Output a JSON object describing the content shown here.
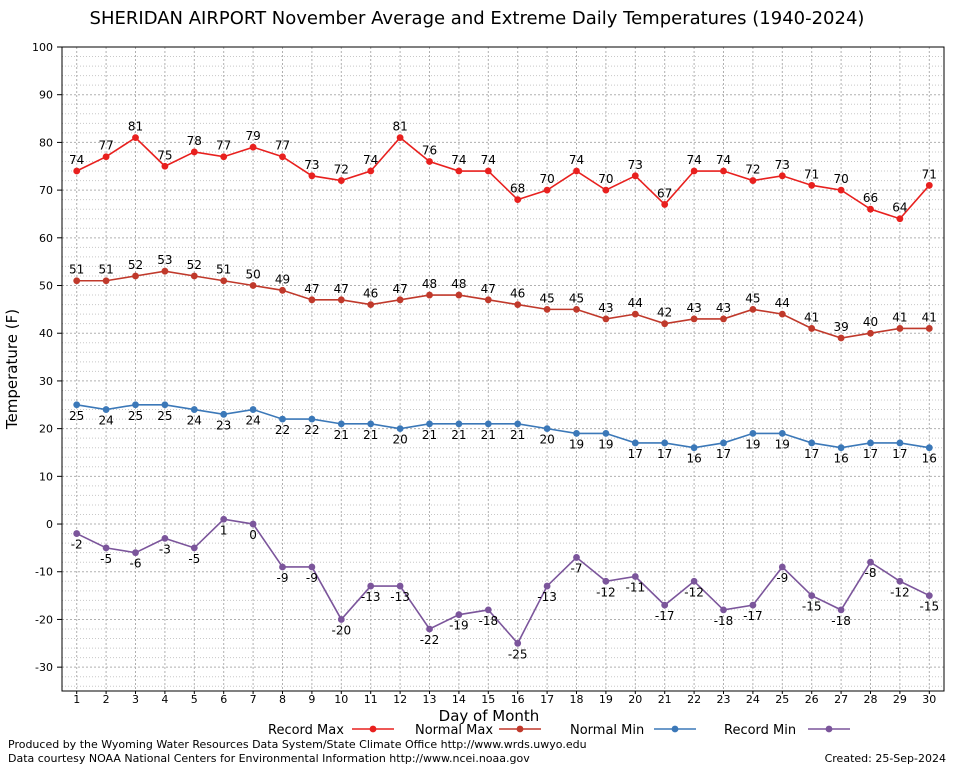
{
  "chart_data": {
    "type": "line",
    "title": "SHERIDAN AIRPORT November Average and Extreme Daily Temperatures (1940-2024)",
    "xlabel": "Day of Month",
    "ylabel": "Temperature (F)",
    "ylim": [
      -35,
      100
    ],
    "yticks": [
      -30,
      -20,
      -10,
      0,
      10,
      20,
      30,
      40,
      50,
      60,
      70,
      80,
      90,
      100
    ],
    "grid": true,
    "legend_position": "bottom",
    "x": [
      1,
      2,
      3,
      4,
      5,
      6,
      7,
      8,
      9,
      10,
      11,
      12,
      13,
      14,
      15,
      16,
      17,
      18,
      19,
      20,
      21,
      22,
      23,
      24,
      25,
      26,
      27,
      28,
      29,
      30
    ],
    "series": [
      {
        "name": "Record Max",
        "color": "#e8201e",
        "values": [
          74,
          77,
          81,
          75,
          78,
          77,
          79,
          77,
          73,
          72,
          74,
          81,
          76,
          74,
          74,
          68,
          70,
          74,
          70,
          73,
          67,
          74,
          74,
          72,
          73,
          71,
          70,
          66,
          64,
          71
        ]
      },
      {
        "name": "Normal Max",
        "color": "#c0392b",
        "values": [
          51,
          51,
          52,
          53,
          52,
          51,
          50,
          49,
          47,
          47,
          46,
          47,
          48,
          48,
          47,
          46,
          45,
          45,
          43,
          44,
          42,
          43,
          43,
          45,
          44,
          41,
          39,
          40,
          41,
          41
        ]
      },
      {
        "name": "Normal Min",
        "color": "#3b78b8",
        "values": [
          25,
          24,
          25,
          25,
          24,
          23,
          24,
          22,
          22,
          21,
          21,
          20,
          21,
          21,
          21,
          21,
          20,
          19,
          19,
          17,
          17,
          16,
          17,
          19,
          19,
          17,
          16,
          17,
          17,
          16
        ]
      },
      {
        "name": "Record Min",
        "color": "#7b559b",
        "values": [
          -2,
          -5,
          -6,
          -3,
          -5,
          1,
          0,
          -9,
          -9,
          -20,
          -13,
          -13,
          -22,
          -19,
          -18,
          -25,
          -13,
          -7,
          -12,
          -11,
          -17,
          -12,
          -18,
          -17,
          -9,
          -15,
          -18,
          -8,
          -12,
          -15
        ]
      }
    ]
  },
  "footer": {
    "produced_by": "Produced by the Wyoming Water Resources Data System/State Climate Office http://www.wrds.uwyo.edu",
    "courtesy": "Data courtesy NOAA National Centers for Environmental Information http://www.ncei.noaa.gov",
    "created": "Created:  25-Sep-2024"
  }
}
